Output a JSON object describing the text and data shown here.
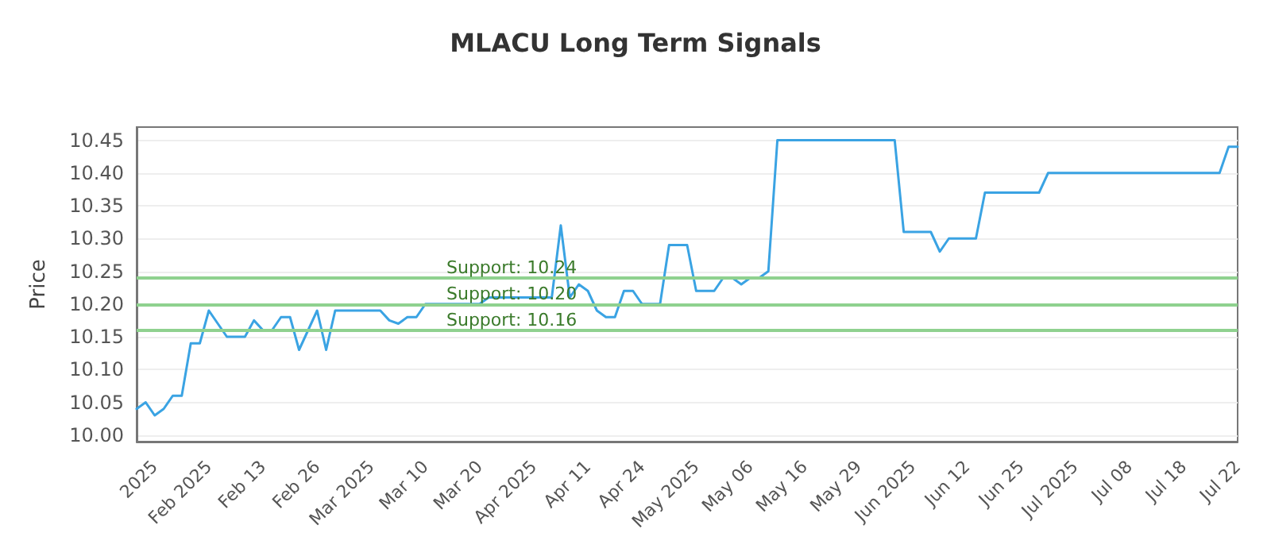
{
  "chart_data": {
    "type": "line",
    "title": "MLACU Long Term Signals",
    "ylabel": "Price",
    "categories": [
      null,
      null,
      "2025",
      null,
      null,
      null,
      null,
      null,
      "Feb 2025",
      null,
      null,
      null,
      null,
      null,
      "Feb 13",
      null,
      null,
      null,
      null,
      null,
      "Feb 26",
      null,
      null,
      null,
      null,
      null,
      "Mar 2025",
      null,
      null,
      null,
      null,
      null,
      "Mar 10",
      null,
      null,
      null,
      null,
      null,
      "Mar 20",
      null,
      null,
      null,
      null,
      null,
      "Apr 2025",
      null,
      null,
      null,
      null,
      null,
      "Apr 11",
      null,
      null,
      null,
      null,
      null,
      "Apr 24",
      null,
      null,
      null,
      null,
      null,
      "May 2025",
      null,
      null,
      null,
      null,
      null,
      "May 06",
      null,
      null,
      null,
      null,
      null,
      "May 16",
      null,
      null,
      null,
      null,
      null,
      "May 29",
      null,
      null,
      null,
      null,
      null,
      "Jun 2025",
      null,
      null,
      null,
      null,
      null,
      "Jun 12",
      null,
      null,
      null,
      null,
      null,
      "Jun 25",
      null,
      null,
      null,
      null,
      null,
      "Jul 2025",
      null,
      null,
      null,
      null,
      null,
      "Jul 08",
      null,
      null,
      null,
      null,
      null,
      "Jul 18",
      null,
      null,
      null,
      null,
      null,
      "Jul 22"
    ],
    "series": [
      {
        "color": "#3aa3e3",
        "values": [
          10.04,
          10.05,
          10.03,
          10.04,
          10.06,
          10.06,
          10.14,
          10.14,
          10.19,
          10.17,
          10.15,
          10.15,
          10.15,
          10.175,
          10.16,
          10.16,
          10.18,
          10.18,
          10.13,
          10.16,
          10.19,
          10.13,
          10.19,
          10.19,
          10.19,
          10.19,
          10.19,
          10.19,
          10.175,
          10.17,
          10.18,
          10.18,
          10.2,
          10.2,
          10.2,
          10.2,
          10.2,
          10.2,
          10.2,
          10.21,
          10.21,
          10.21,
          10.21,
          10.21,
          10.21,
          10.21,
          10.21,
          10.32,
          10.21,
          10.23,
          10.22,
          10.19,
          10.18,
          10.18,
          10.22,
          10.22,
          10.2,
          10.2,
          10.2,
          10.29,
          10.29,
          10.29,
          10.22,
          10.22,
          10.22,
          10.24,
          10.24,
          10.23,
          10.24,
          10.24,
          10.25,
          10.45,
          10.45,
          10.45,
          10.45,
          10.45,
          10.45,
          10.45,
          10.45,
          10.45,
          10.45,
          10.45,
          10.45,
          10.45,
          10.45,
          10.31,
          10.31,
          10.31,
          10.31,
          10.28,
          10.3,
          10.3,
          10.3,
          10.3,
          10.37,
          10.37,
          10.37,
          10.37,
          10.37,
          10.37,
          10.37,
          10.4,
          10.4,
          10.4,
          10.4,
          10.4,
          10.4,
          10.4,
          10.4,
          10.4,
          10.4,
          10.4,
          10.4,
          10.4,
          10.4,
          10.4,
          10.4,
          10.4,
          10.4,
          10.4,
          10.4,
          10.44,
          10.44
        ]
      }
    ],
    "ylim": [
      9.99,
      10.47
    ],
    "yticks": [
      {
        "value": 10,
        "label": "10.00"
      },
      {
        "value": 10.05,
        "label": "10.05"
      },
      {
        "value": 10.1,
        "label": "10.10"
      },
      {
        "value": 10.15,
        "label": "10.15"
      },
      {
        "value": 10.2,
        "label": "10.20"
      },
      {
        "value": 10.25,
        "label": "10.25"
      },
      {
        "value": 10.3,
        "label": "10.30"
      },
      {
        "value": 10.35,
        "label": "10.35"
      },
      {
        "value": 10.4,
        "label": "10.40"
      },
      {
        "value": 10.45,
        "label": "10.45"
      }
    ],
    "ref_lines": [
      {
        "axis": "y",
        "value": 10.24,
        "label": "Support: 10.24",
        "color": "#8fd18f"
      },
      {
        "axis": "y",
        "value": 10.2,
        "label": "Support: 10.20",
        "color": "#8fd18f"
      },
      {
        "axis": "y",
        "value": 10.16,
        "label": "Support: 10.16",
        "color": "#8fd18f"
      }
    ],
    "grid": "y",
    "marker": "none",
    "line_style": "solid"
  }
}
